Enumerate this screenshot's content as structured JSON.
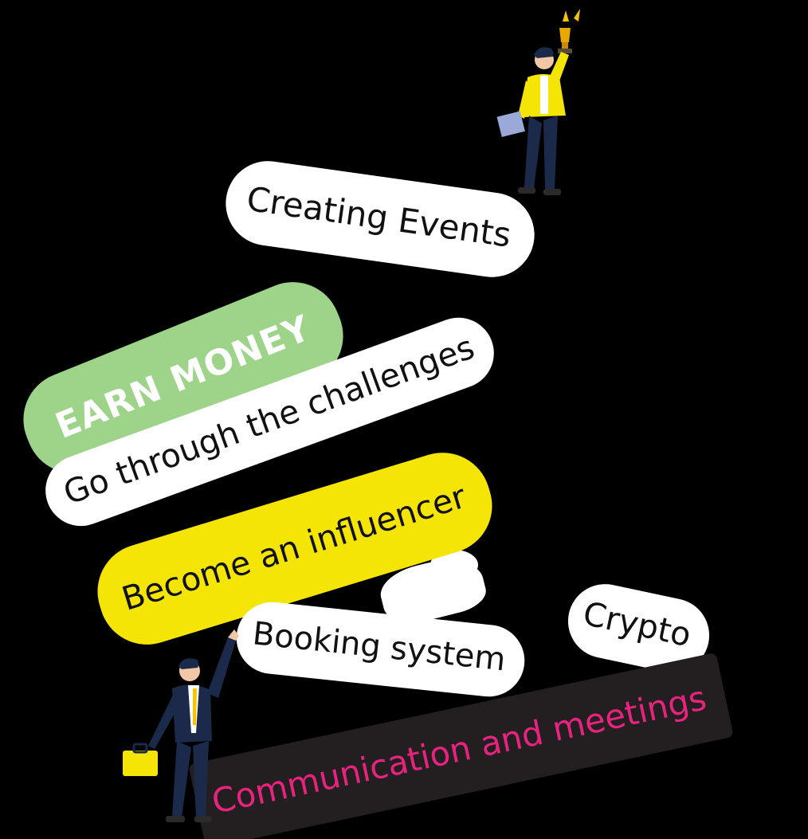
{
  "tags": {
    "creating_events": "Creating Events",
    "earn_money": "EARN MONEY",
    "challenges": "Go through the challenges",
    "influencer": "Become an influencer",
    "booking": "Booking system",
    "crypto": "Crypto",
    "communication": "Communication and meetings"
  },
  "colors": {
    "background": "#000000",
    "white_tag": "#ffffff",
    "green_tag": "#9ed48a",
    "yellow_tag": "#f5e507",
    "dark_tag": "#231f20",
    "pink_text": "#e8237f",
    "jacket_yellow": "#f5e507",
    "suit_navy": "#1b2a4a"
  },
  "icons": {
    "top_figure": "person-with-trophy-icon",
    "bottom_figure": "businessman-with-briefcase-icon"
  }
}
